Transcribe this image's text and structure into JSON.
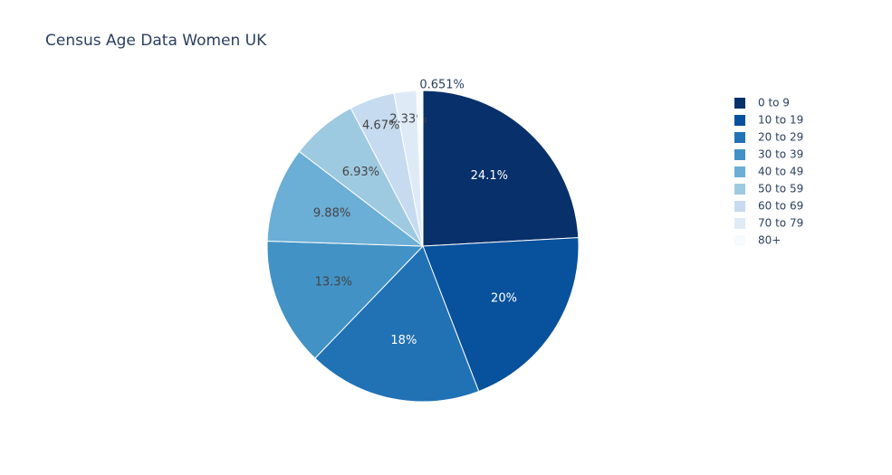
{
  "chart_data": {
    "type": "pie",
    "title": "Census Age Data Women UK",
    "categories": [
      "0 to 9",
      "10 to 19",
      "20 to 29",
      "30 to 39",
      "40 to 49",
      "50 to 59",
      "60 to 69",
      "70 to 79",
      "80+"
    ],
    "values": [
      24.1,
      20,
      18,
      13.3,
      9.88,
      6.93,
      4.67,
      2.33,
      0.651
    ],
    "value_labels": [
      "24.1%",
      "20%",
      "18%",
      "13.3%",
      "9.88%",
      "6.93%",
      "4.67%",
      "2.33%",
      "0.651%"
    ],
    "colors": [
      "#08306b",
      "#08519c",
      "#2171b5",
      "#4292c6",
      "#6baed6",
      "#9ecae1",
      "#c6dbef",
      "#deebf7",
      "#f7fbff"
    ],
    "legend": "top-right"
  }
}
